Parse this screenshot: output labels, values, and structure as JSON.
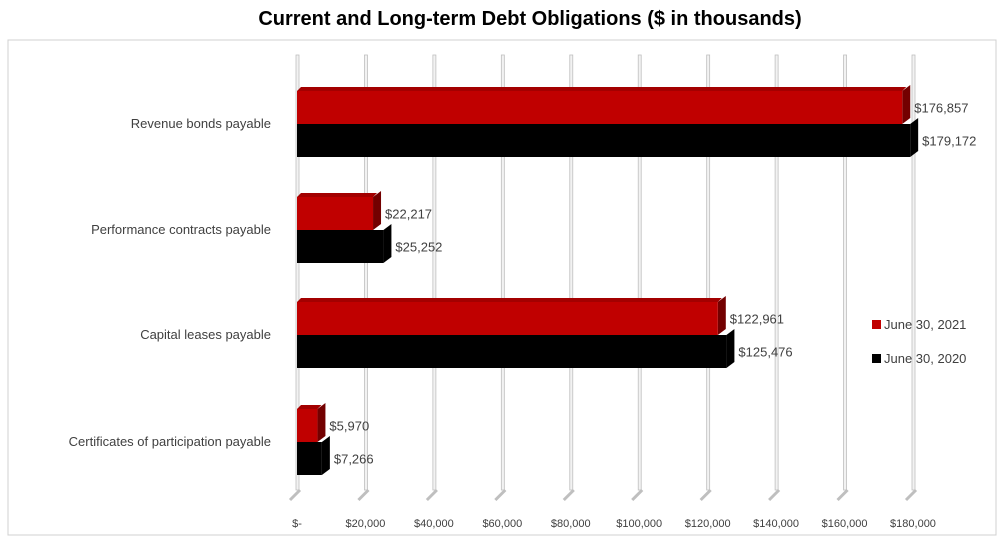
{
  "chart_data": {
    "type": "bar",
    "orientation": "horizontal",
    "title": "Current and Long-term Debt Obligations ($ in thousands)",
    "categories": [
      "Revenue bonds payable",
      "Performance contracts payable",
      "Capital leases payable",
      "Certificates of participation payable"
    ],
    "series": [
      {
        "name": "June 30, 2021",
        "color": "#C00000",
        "values": [
          176857,
          22217,
          122961,
          5970
        ],
        "labels": [
          "$176,857",
          "$22,217",
          "$122,961",
          "$5,970"
        ]
      },
      {
        "name": "June 30, 2020",
        "color": "#000000",
        "values": [
          179172,
          25252,
          125476,
          7266
        ],
        "labels": [
          "$179,172",
          "$25,252",
          "$125,476",
          "$7,266"
        ]
      }
    ],
    "x_ticks": [
      "$-",
      "$20,000",
      "$40,000",
      "$60,000",
      "$80,000",
      "$100,000",
      "$120,000",
      "$140,000",
      "$160,000",
      "$180,000"
    ],
    "xlim": [
      0,
      180000
    ],
    "grid": true,
    "legend_position": "right"
  }
}
